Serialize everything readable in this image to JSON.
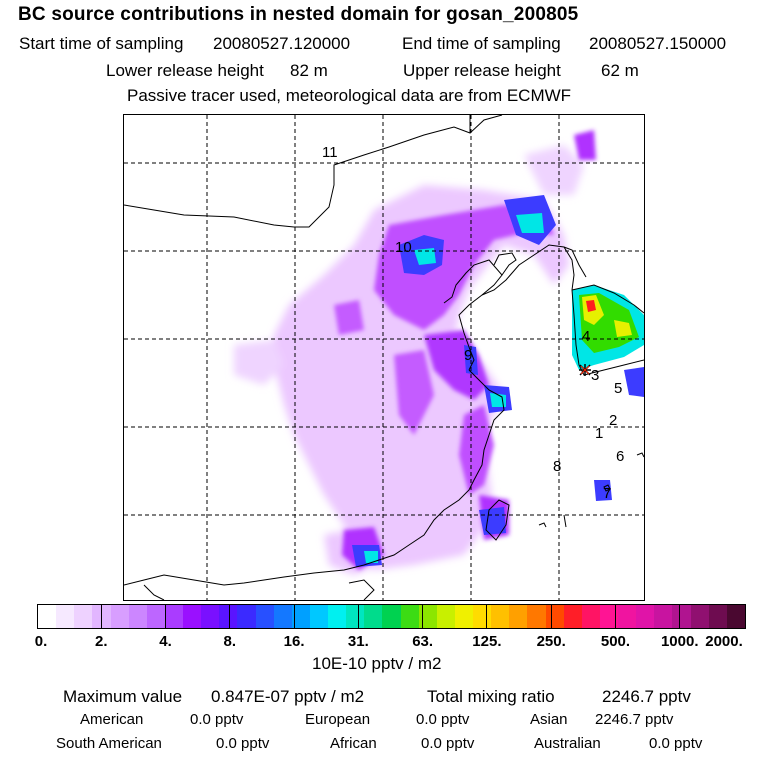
{
  "title": "BC  source contributions in nested domain for gosan_200805",
  "header": {
    "start_label": "Start time of sampling",
    "start_value": "20080527.120000",
    "end_label": "End time of sampling",
    "end_value": "20080527.150000",
    "lower_label": "Lower release height",
    "lower_value": "82 m",
    "upper_label": "Upper release height",
    "upper_value": "62 m",
    "note": "Passive tracer used, meteorological data are from ECMWF"
  },
  "map": {
    "region_labels": [
      "11",
      "10",
      "9",
      "4",
      "3",
      "5",
      "2",
      "1",
      "6",
      "8",
      "7"
    ],
    "receptor_marker": "asterisk-icon",
    "colors": {
      "light_purple": "#e6b8ff",
      "purple": "#b400ff",
      "blue": "#3c3cff",
      "cyan": "#00e6e6",
      "green": "#32dc00",
      "yellow": "#e6f000",
      "red": "#ff1e1e",
      "coast": "#000000",
      "grid": "#000000"
    }
  },
  "colorbar": {
    "colors": [
      "#ffffff",
      "#f6e9ff",
      "#eed2ff",
      "#e2b6ff",
      "#d89eff",
      "#cc86ff",
      "#bd66ff",
      "#aa3cff",
      "#9a10ff",
      "#7a10ff",
      "#5a14ff",
      "#3b2aff",
      "#2850ff",
      "#1478ff",
      "#00a0ff",
      "#00c8ff",
      "#00f0f0",
      "#00e6c0",
      "#00dc8c",
      "#00d250",
      "#3cdc14",
      "#8ce600",
      "#c8f000",
      "#f0f000",
      "#ffdc00",
      "#ffc000",
      "#ffa000",
      "#ff7800",
      "#ff4a00",
      "#ff1e28",
      "#ff1464",
      "#ff1494",
      "#f014a0",
      "#e014a8",
      "#c814a0",
      "#b01490",
      "#901070",
      "#6e0c50",
      "#4a0830"
    ],
    "tick_labels": [
      "0.",
      "2.",
      "4.",
      "8.",
      "16.",
      "31.",
      "63.",
      "125.",
      "250.",
      "500.",
      "1000.",
      "2000."
    ],
    "units": "10E-10 pptv / m2"
  },
  "stats": {
    "max_label": "Maximum value",
    "max_value": "0.847E-07 pptv / m2",
    "total_label": "Total mixing ratio",
    "total_value": "2246.7 pptv",
    "regions": [
      {
        "name": "American",
        "value": "0.0 pptv"
      },
      {
        "name": "European",
        "value": "0.0 pptv"
      },
      {
        "name": "Asian",
        "value": "2246.7 pptv"
      },
      {
        "name": "South American",
        "value": "0.0 pptv"
      },
      {
        "name": "African",
        "value": "0.0 pptv"
      },
      {
        "name": "Australian",
        "value": "0.0 pptv"
      }
    ]
  }
}
